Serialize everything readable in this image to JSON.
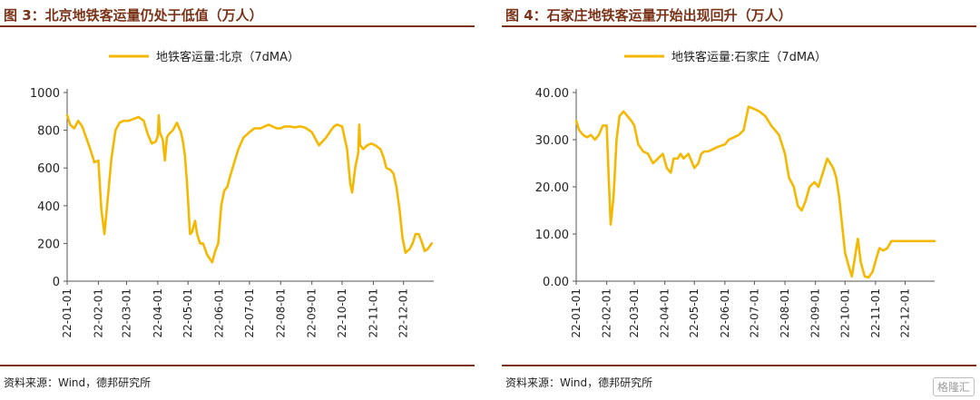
{
  "figures": [
    {
      "title": "图 3：北京地铁客运量仍处于低值（万人）",
      "source": "资料来源：Wind，德邦研究所"
    },
    {
      "title": "图 4：石家庄地铁客运量开始出现回升（万人）",
      "source": "资料来源：Wind，德邦研究所"
    }
  ],
  "watermark": "格隆汇",
  "chart_data": [
    {
      "type": "line",
      "legend": "地铁客运量:北京（7dMA）",
      "line_color": "#f5b800",
      "ylim": [
        0,
        1000
      ],
      "yticks": [
        "0",
        "200",
        "400",
        "600",
        "800",
        "1000"
      ],
      "xticks": [
        "22-01-01",
        "22-02-01",
        "22-03-01",
        "22-04-01",
        "22-05-01",
        "22-06-01",
        "22-07-01",
        "22-08-01",
        "22-09-01",
        "22-10-01",
        "22-11-01",
        "22-12-01"
      ],
      "x": [
        "22-01-01",
        "22-01-04",
        "22-01-08",
        "22-01-12",
        "22-01-16",
        "22-01-20",
        "22-01-24",
        "22-01-28",
        "22-02-01",
        "22-02-04",
        "22-02-07",
        "22-02-10",
        "22-02-14",
        "22-02-18",
        "22-02-22",
        "22-02-26",
        "22-03-03",
        "22-03-08",
        "22-03-13",
        "22-03-18",
        "22-03-22",
        "22-03-26",
        "22-03-30",
        "22-04-01",
        "22-04-02",
        "22-04-03",
        "22-04-06",
        "22-04-08",
        "22-04-10",
        "22-04-12",
        "22-04-16",
        "22-04-20",
        "22-04-24",
        "22-04-26",
        "22-04-28",
        "22-04-30",
        "22-05-03",
        "22-05-05",
        "22-05-08",
        "22-05-10",
        "22-05-13",
        "22-05-16",
        "22-05-20",
        "22-05-25",
        "22-05-28",
        "22-05-31",
        "22-06-03",
        "22-06-06",
        "22-06-09",
        "22-06-12",
        "22-06-16",
        "22-06-20",
        "22-06-25",
        "22-07-01",
        "22-07-06",
        "22-07-12",
        "22-07-20",
        "22-07-28",
        "22-08-01",
        "22-08-05",
        "22-08-10",
        "22-08-15",
        "22-08-20",
        "22-08-25",
        "22-09-01",
        "22-09-08",
        "22-09-15",
        "22-09-20",
        "22-09-23",
        "22-09-26",
        "22-10-01",
        "22-10-06",
        "22-10-09",
        "22-10-11",
        "22-10-14",
        "22-10-17",
        "22-10-18",
        "22-10-19",
        "22-10-22",
        "22-10-26",
        "22-10-30",
        "22-11-03",
        "22-11-08",
        "22-11-11",
        "22-11-14",
        "22-11-18",
        "22-11-21",
        "22-11-24",
        "22-11-27",
        "22-11-30",
        "22-12-03",
        "22-12-07",
        "22-12-10",
        "22-12-13",
        "22-12-16",
        "22-12-19",
        "22-12-22",
        "22-12-25",
        "22-12-29"
      ],
      "values": [
        880,
        830,
        810,
        850,
        820,
        760,
        700,
        630,
        640,
        380,
        250,
        420,
        650,
        800,
        840,
        850,
        850,
        860,
        870,
        850,
        780,
        730,
        740,
        770,
        880,
        790,
        750,
        640,
        760,
        780,
        800,
        840,
        790,
        740,
        660,
        520,
        250,
        260,
        320,
        250,
        200,
        200,
        140,
        100,
        160,
        200,
        400,
        480,
        500,
        560,
        630,
        700,
        760,
        790,
        810,
        810,
        830,
        810,
        810,
        820,
        820,
        815,
        820,
        815,
        790,
        720,
        760,
        800,
        820,
        830,
        820,
        700,
        520,
        470,
        600,
        680,
        830,
        720,
        700,
        720,
        730,
        720,
        700,
        660,
        600,
        590,
        570,
        500,
        380,
        230,
        150,
        170,
        200,
        250,
        250,
        210,
        160,
        170,
        200
      ]
    },
    {
      "type": "line",
      "legend": "地铁客运量:石家庄（7dMA）",
      "line_color": "#f5b800",
      "ylim": [
        0,
        40
      ],
      "yticks": [
        "0.00",
        "10.00",
        "20.00",
        "30.00",
        "40.00"
      ],
      "xticks": [
        "22-01-01",
        "22-02-01",
        "22-03-01",
        "22-04-01",
        "22-05-01",
        "22-06-01",
        "22-07-01",
        "22-08-01",
        "22-09-01",
        "22-10-01",
        "22-11-01",
        "22-12-01"
      ],
      "x": [
        "22-01-01",
        "22-01-04",
        "22-01-08",
        "22-01-12",
        "22-01-16",
        "22-01-20",
        "22-01-24",
        "22-01-28",
        "22-02-01",
        "22-02-03",
        "22-02-05",
        "22-02-08",
        "22-02-11",
        "22-02-14",
        "22-02-18",
        "22-02-22",
        "22-02-26",
        "22-03-01",
        "22-03-05",
        "22-03-10",
        "22-03-15",
        "22-03-20",
        "22-03-25",
        "22-03-30",
        "22-04-03",
        "22-04-07",
        "22-04-10",
        "22-04-14",
        "22-04-17",
        "22-04-20",
        "22-04-25",
        "22-05-01",
        "22-05-05",
        "22-05-08",
        "22-05-11",
        "22-05-15",
        "22-05-20",
        "22-05-25",
        "22-06-01",
        "22-06-05",
        "22-06-10",
        "22-06-15",
        "22-06-20",
        "22-06-25",
        "22-07-01",
        "22-07-06",
        "22-07-12",
        "22-07-18",
        "22-07-22",
        "22-07-26",
        "22-08-01",
        "22-08-05",
        "22-08-10",
        "22-08-14",
        "22-08-18",
        "22-08-22",
        "22-08-26",
        "22-08-31",
        "22-09-04",
        "22-09-07",
        "22-09-10",
        "22-09-13",
        "22-09-16",
        "22-09-19",
        "22-09-22",
        "22-09-25",
        "22-09-28",
        "22-10-01",
        "22-10-05",
        "22-10-08",
        "22-10-11",
        "22-10-14",
        "22-10-17",
        "22-10-21",
        "22-10-25",
        "22-10-29",
        "22-11-02",
        "22-11-05",
        "22-11-09",
        "22-11-13",
        "22-11-17",
        "22-11-21",
        "22-11-25",
        "22-11-29",
        "22-12-03",
        "22-12-07",
        "22-12-11",
        "22-12-15",
        "22-12-19",
        "22-12-23",
        "22-12-27",
        "22-12-31"
      ],
      "values": [
        34,
        32,
        31,
        30.5,
        31,
        30,
        31,
        33,
        33,
        22,
        12,
        18,
        30,
        35,
        36,
        35,
        34,
        33,
        29,
        27.5,
        27,
        25,
        26,
        27,
        24,
        23,
        26,
        26,
        27,
        26,
        27,
        24,
        25,
        27,
        27.5,
        27.5,
        28,
        28.5,
        29,
        30,
        30.5,
        31,
        32,
        37,
        36.5,
        36,
        35,
        33,
        32,
        31,
        27,
        22,
        20,
        16,
        15,
        17,
        20,
        21,
        20,
        22,
        24,
        26,
        25,
        24,
        22,
        18,
        12,
        6,
        3,
        1,
        5,
        9,
        4,
        1,
        0.8,
        2,
        5,
        7,
        6.5,
        7,
        8.5,
        8.5,
        8.5,
        8.5,
        8.5,
        8.5,
        8.5,
        8.5,
        8.5,
        8.5,
        8.5,
        8.5
      ]
    }
  ]
}
